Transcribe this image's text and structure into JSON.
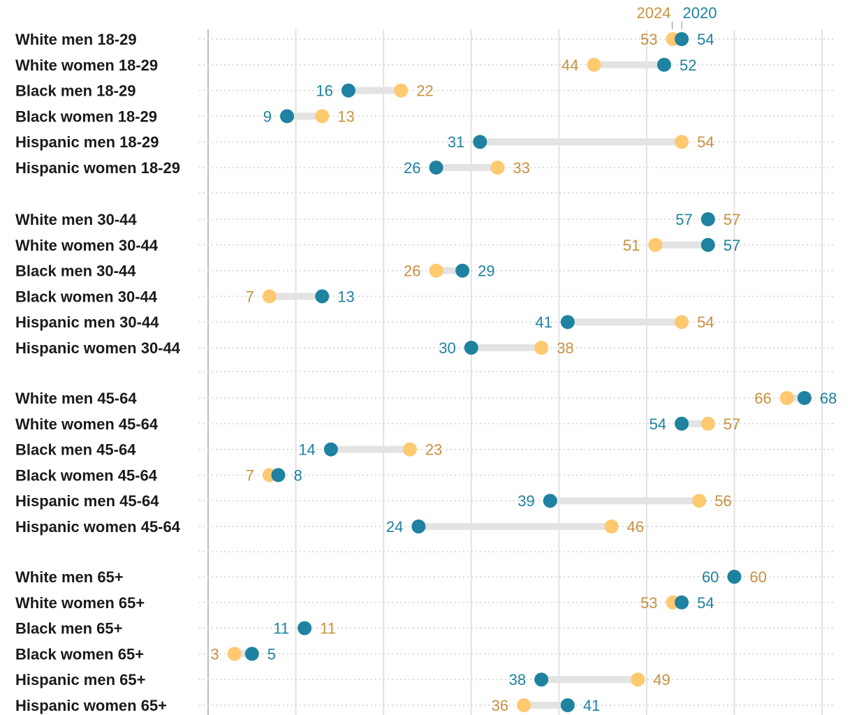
{
  "chart_data": {
    "type": "dumbbell",
    "xlim": [
      0,
      70
    ],
    "x_gridlines": [
      0,
      10,
      20,
      30,
      40,
      50,
      60,
      70
    ],
    "legend": {
      "placement": "top-right",
      "entries": [
        {
          "name": "2024",
          "color": "#fec96f",
          "text_color": "#c8903e"
        },
        {
          "name": "2020",
          "color": "#1e82a0",
          "text_color": "#1e82a0"
        }
      ]
    },
    "groups": [
      {
        "rows": [
          {
            "label": "White men 18-29",
            "v2020": 54,
            "v2024": 53
          },
          {
            "label": "White women 18-29",
            "v2020": 52,
            "v2024": 44
          },
          {
            "label": "Black men 18-29",
            "v2020": 16,
            "v2024": 22
          },
          {
            "label": "Black women 18-29",
            "v2020": 9,
            "v2024": 13
          },
          {
            "label": "Hispanic men 18-29",
            "v2020": 31,
            "v2024": 54
          },
          {
            "label": "Hispanic women 18-29",
            "v2020": 26,
            "v2024": 33
          }
        ]
      },
      {
        "rows": [
          {
            "label": "White men 30-44",
            "v2020": 57,
            "v2024": 57
          },
          {
            "label": "White women 30-44",
            "v2020": 57,
            "v2024": 51
          },
          {
            "label": "Black men 30-44",
            "v2020": 29,
            "v2024": 26
          },
          {
            "label": "Black women 30-44",
            "v2020": 13,
            "v2024": 7
          },
          {
            "label": "Hispanic men 30-44",
            "v2020": 41,
            "v2024": 54
          },
          {
            "label": "Hispanic women 30-44",
            "v2020": 30,
            "v2024": 38
          }
        ]
      },
      {
        "rows": [
          {
            "label": "White men 45-64",
            "v2020": 68,
            "v2024": 66
          },
          {
            "label": "White women 45-64",
            "v2020": 54,
            "v2024": 57
          },
          {
            "label": "Black men 45-64",
            "v2020": 14,
            "v2024": 23
          },
          {
            "label": "Black women 45-64",
            "v2020": 8,
            "v2024": 7
          },
          {
            "label": "Hispanic men 45-64",
            "v2020": 39,
            "v2024": 56
          },
          {
            "label": "Hispanic women 45-64",
            "v2020": 24,
            "v2024": 46
          }
        ]
      },
      {
        "rows": [
          {
            "label": "White men 65+",
            "v2020": 60,
            "v2024": 60
          },
          {
            "label": "White women 65+",
            "v2020": 54,
            "v2024": 53
          },
          {
            "label": "Black men 65+",
            "v2020": 11,
            "v2024": 11
          },
          {
            "label": "Black women 65+",
            "v2020": 5,
            "v2024": 3
          },
          {
            "label": "Hispanic men 65+",
            "v2020": 38,
            "v2024": 49
          },
          {
            "label": "Hispanic women 65+",
            "v2020": 41,
            "v2024": 36
          }
        ]
      }
    ]
  }
}
